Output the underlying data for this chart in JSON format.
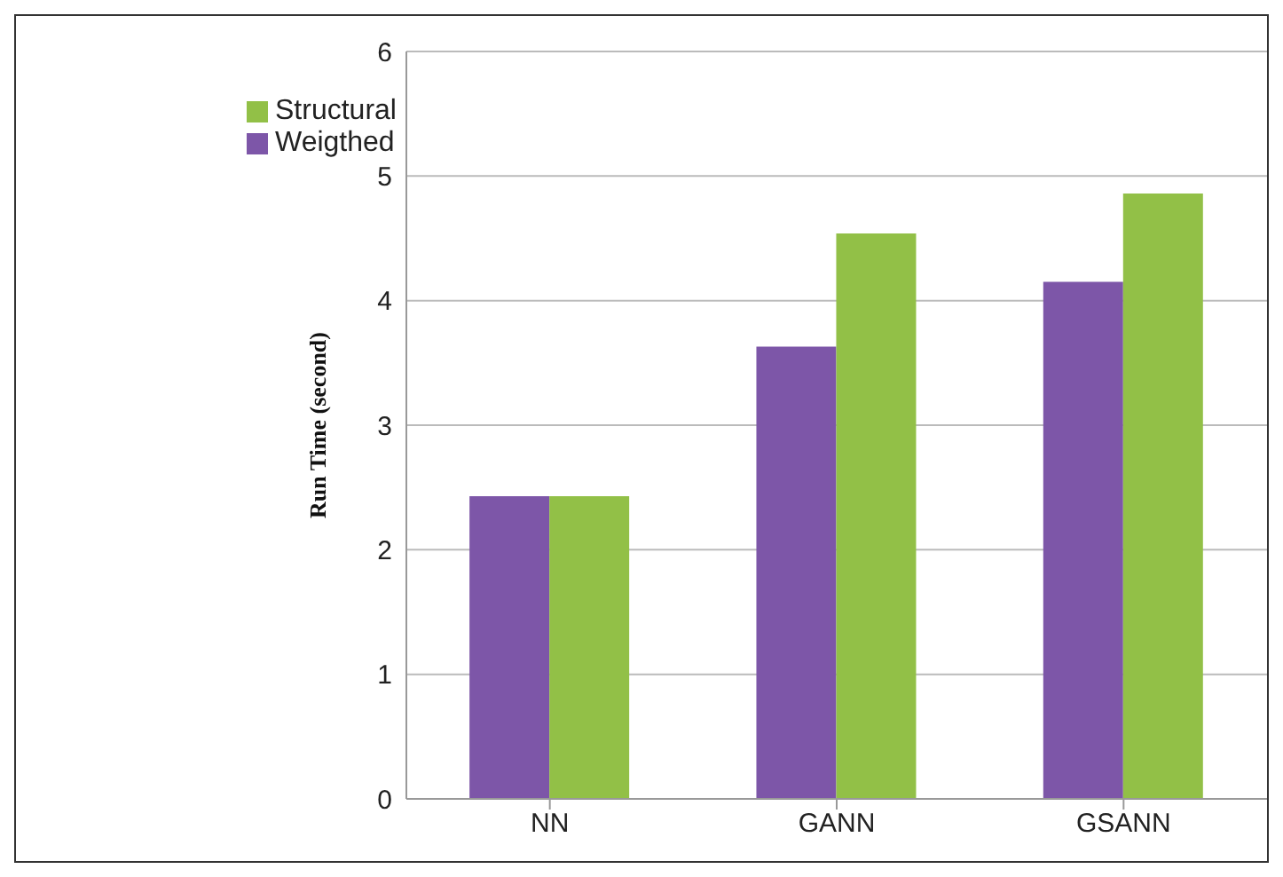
{
  "chart_data": {
    "type": "bar",
    "ylabel": "Run Time (second)",
    "categories": [
      "NN",
      "GANN",
      "GSANN"
    ],
    "series": [
      {
        "name": "Weigthed",
        "color": "#7d56a8",
        "values": [
          2.43,
          3.63,
          4.15
        ]
      },
      {
        "name": "Structural",
        "color": "#92c047",
        "values": [
          2.43,
          4.54,
          4.86
        ]
      }
    ],
    "ylim": [
      0,
      6
    ],
    "yticks": [
      0,
      1,
      2,
      3,
      4,
      5,
      6
    ],
    "grid": "y",
    "legend": "top left"
  }
}
